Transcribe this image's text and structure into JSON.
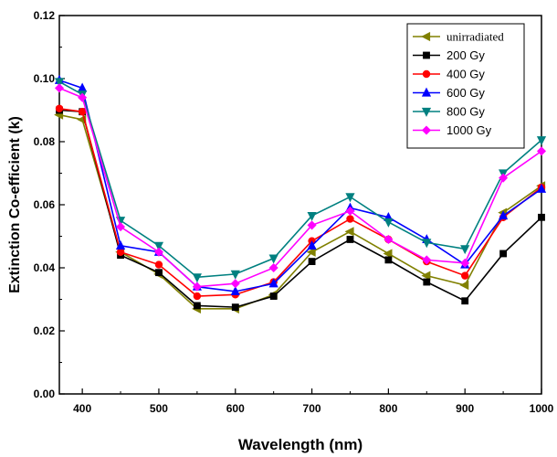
{
  "chart_data": {
    "type": "line",
    "xlabel": "Wavelength (nm)",
    "ylabel": "Extinction Co-efficient (k)",
    "xlim": [
      370,
      1000
    ],
    "ylim": [
      0.0,
      0.12
    ],
    "x_ticks": [
      400,
      500,
      600,
      700,
      800,
      900,
      1000
    ],
    "x_tick_labels": [
      "400",
      "500",
      "600",
      "700",
      "800",
      "900",
      "1000"
    ],
    "y_ticks": [
      0.0,
      0.02,
      0.04,
      0.06,
      0.08,
      0.1,
      0.12
    ],
    "y_tick_labels": [
      "0.00",
      "0.02",
      "0.04",
      "0.06",
      "0.08",
      "0.10",
      "0.12"
    ],
    "grid": false,
    "legend_position": "top-right",
    "x": [
      370,
      400,
      450,
      500,
      550,
      600,
      650,
      700,
      750,
      800,
      850,
      900,
      950,
      1000
    ],
    "series": [
      {
        "name": "unirradiated",
        "color": "#808000",
        "marker": "triangle-left",
        "values": [
          0.0885,
          0.087,
          0.045,
          0.038,
          0.027,
          0.027,
          0.0315,
          0.045,
          0.0515,
          0.0445,
          0.0375,
          0.0345,
          0.0575,
          0.066
        ]
      },
      {
        "name": "200 Gy",
        "color": "#000000",
        "marker": "square",
        "values": [
          0.09,
          0.0895,
          0.044,
          0.0385,
          0.028,
          0.0275,
          0.031,
          0.042,
          0.049,
          0.0425,
          0.0355,
          0.0295,
          0.0445,
          0.056
        ]
      },
      {
        "name": "400 Gy",
        "color": "#ff0000",
        "marker": "circle",
        "values": [
          0.0905,
          0.0895,
          0.045,
          0.041,
          0.031,
          0.0315,
          0.0355,
          0.0485,
          0.0555,
          0.049,
          0.042,
          0.0375,
          0.056,
          0.0655
        ]
      },
      {
        "name": "600 Gy",
        "color": "#0000ff",
        "marker": "triangle-up",
        "values": [
          0.0995,
          0.097,
          0.047,
          0.045,
          0.034,
          0.0325,
          0.035,
          0.047,
          0.059,
          0.056,
          0.049,
          0.041,
          0.0565,
          0.065
        ]
      },
      {
        "name": "800 Gy",
        "color": "#008080",
        "marker": "triangle-down",
        "values": [
          0.099,
          0.095,
          0.055,
          0.047,
          0.037,
          0.038,
          0.043,
          0.0565,
          0.0625,
          0.0545,
          0.048,
          0.046,
          0.07,
          0.0805
        ]
      },
      {
        "name": "1000 Gy",
        "color": "#ff00ff",
        "marker": "diamond",
        "values": [
          0.097,
          0.094,
          0.053,
          0.045,
          0.034,
          0.035,
          0.04,
          0.0535,
          0.058,
          0.049,
          0.0425,
          0.0415,
          0.0685,
          0.077
        ]
      }
    ]
  }
}
